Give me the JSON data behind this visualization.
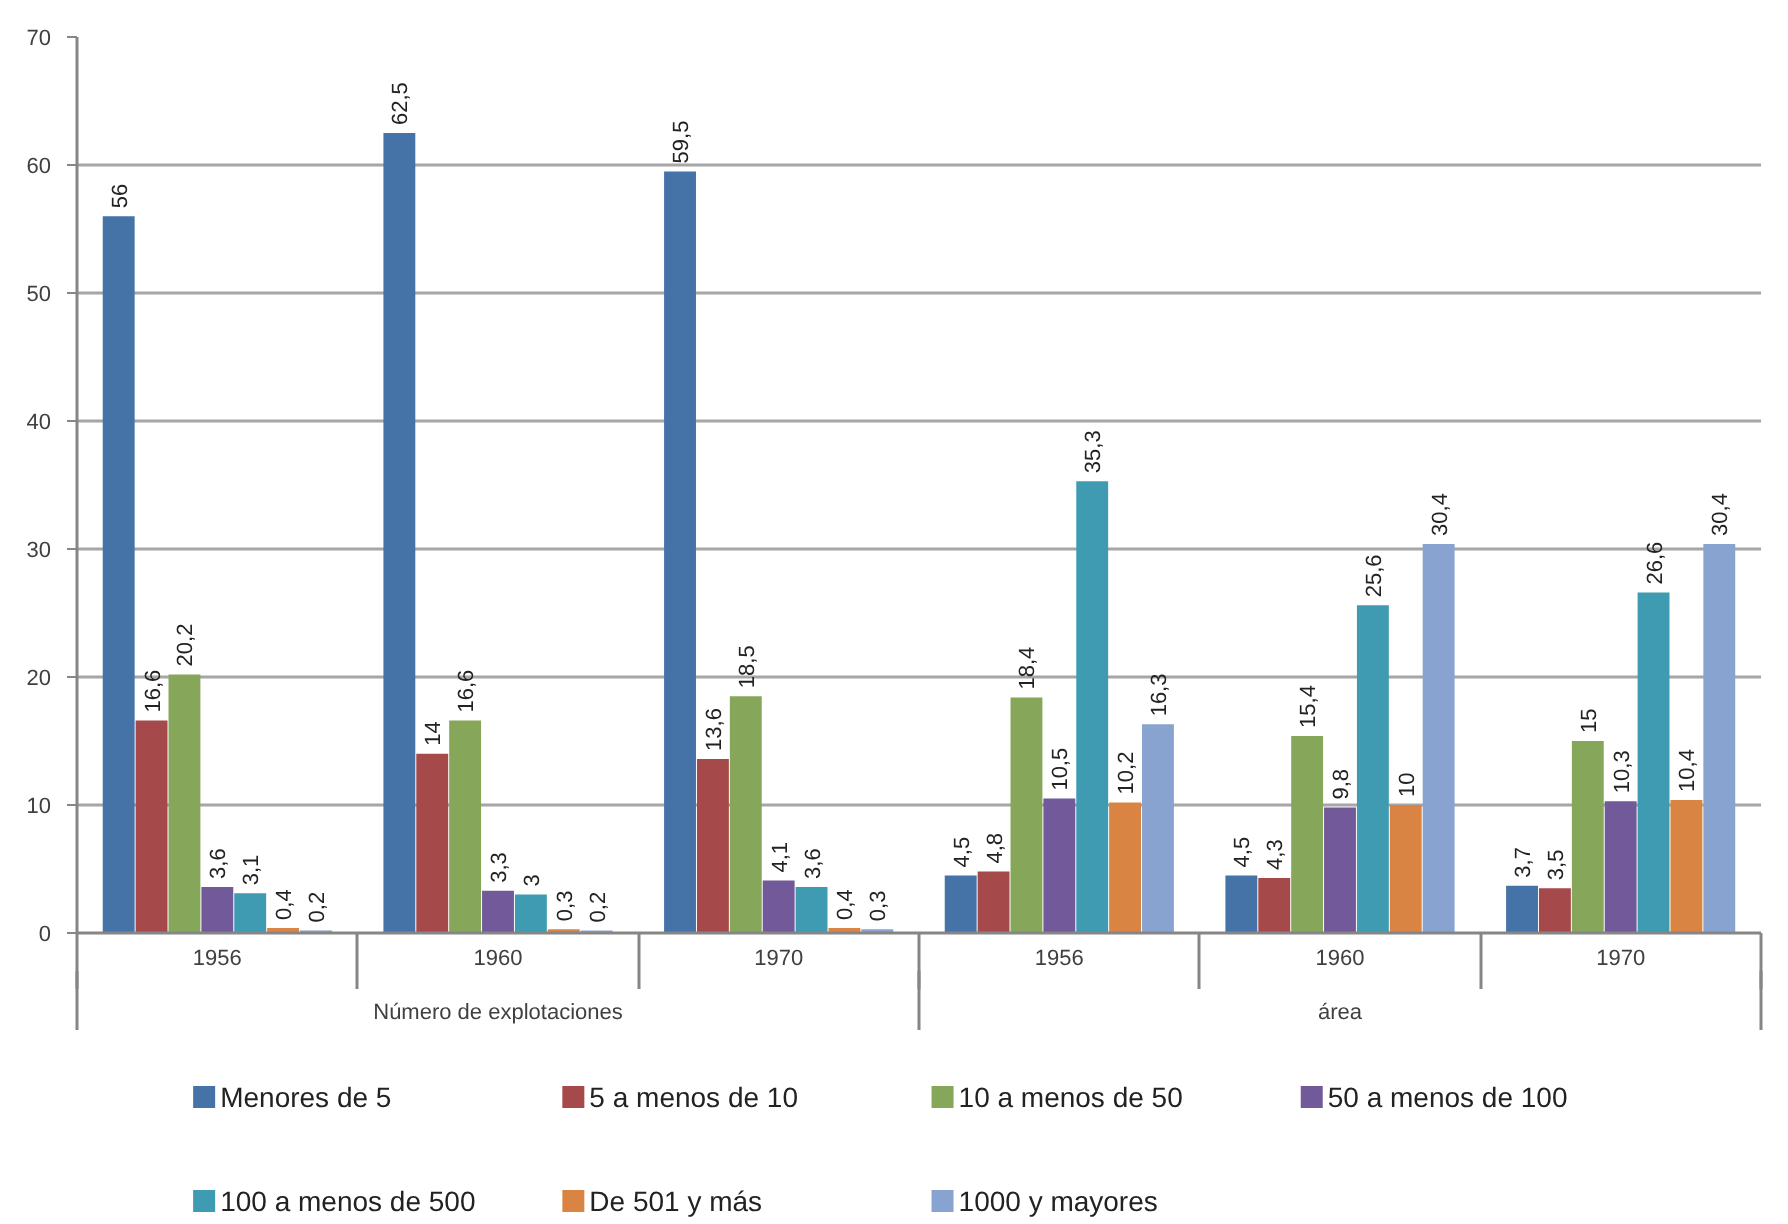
{
  "chart_data": {
    "type": "bar",
    "categories": [
      "1956",
      "1960",
      "1970",
      "1956",
      "1960",
      "1970"
    ],
    "annotations": [
      "Número de explotaciones",
      "área"
    ],
    "ylim": [
      0,
      70
    ],
    "yticks": [
      0,
      10,
      20,
      30,
      40,
      50,
      60,
      70
    ],
    "grid": "y",
    "legend": "bottom",
    "series": [
      {
        "name": "Menores de 5",
        "color": "#4572a7",
        "values": [
          56,
          62.5,
          59.5,
          4.5,
          4.5,
          3.7
        ],
        "value_labels": [
          "56",
          "62,5",
          "59,5",
          "4,5",
          "4,5",
          "3,7"
        ]
      },
      {
        "name": "5 a menos de 10",
        "color": "#a6494a",
        "values": [
          16.6,
          14,
          13.6,
          4.8,
          4.3,
          3.5
        ],
        "value_labels": [
          "16,6",
          "14",
          "13,6",
          "4,8",
          "4,3",
          "3,5"
        ]
      },
      {
        "name": "10 a menos de 50",
        "color": "#86a75a",
        "values": [
          20.2,
          16.6,
          18.5,
          18.4,
          15.4,
          15
        ],
        "value_labels": [
          "20,2",
          "16,6",
          "18,5",
          "18,4",
          "15,4",
          "15"
        ]
      },
      {
        "name": "50 a menos de 100",
        "color": "#71599a",
        "values": [
          3.6,
          3.3,
          4.1,
          10.5,
          9.8,
          10.3
        ],
        "value_labels": [
          "3,6",
          "3,3",
          "4,1",
          "10,5",
          "9,8",
          "10,3"
        ]
      },
      {
        "name": "100 a menos de 500",
        "color": "#3f9bb2",
        "values": [
          3.1,
          3,
          3.6,
          35.3,
          25.6,
          26.6
        ],
        "value_labels": [
          "3,1",
          "3",
          "3,6",
          "35,3",
          "25,6",
          "26,6"
        ]
      },
      {
        "name": "De 501 y más",
        "color": "#da8443",
        "values": [
          0.4,
          0.3,
          0.4,
          10.2,
          10,
          10.4
        ],
        "value_labels": [
          "0,4",
          "0,3",
          "0,4",
          "10,2",
          "10",
          "10,4"
        ]
      },
      {
        "name": "1000 y mayores",
        "color": "#89a3d0",
        "values": [
          0.2,
          0.2,
          0.3,
          16.3,
          30.4,
          30.4
        ],
        "value_labels": [
          "0,2",
          "0,2",
          "0,3",
          "16,3",
          "30,4",
          "30,4"
        ]
      }
    ]
  }
}
